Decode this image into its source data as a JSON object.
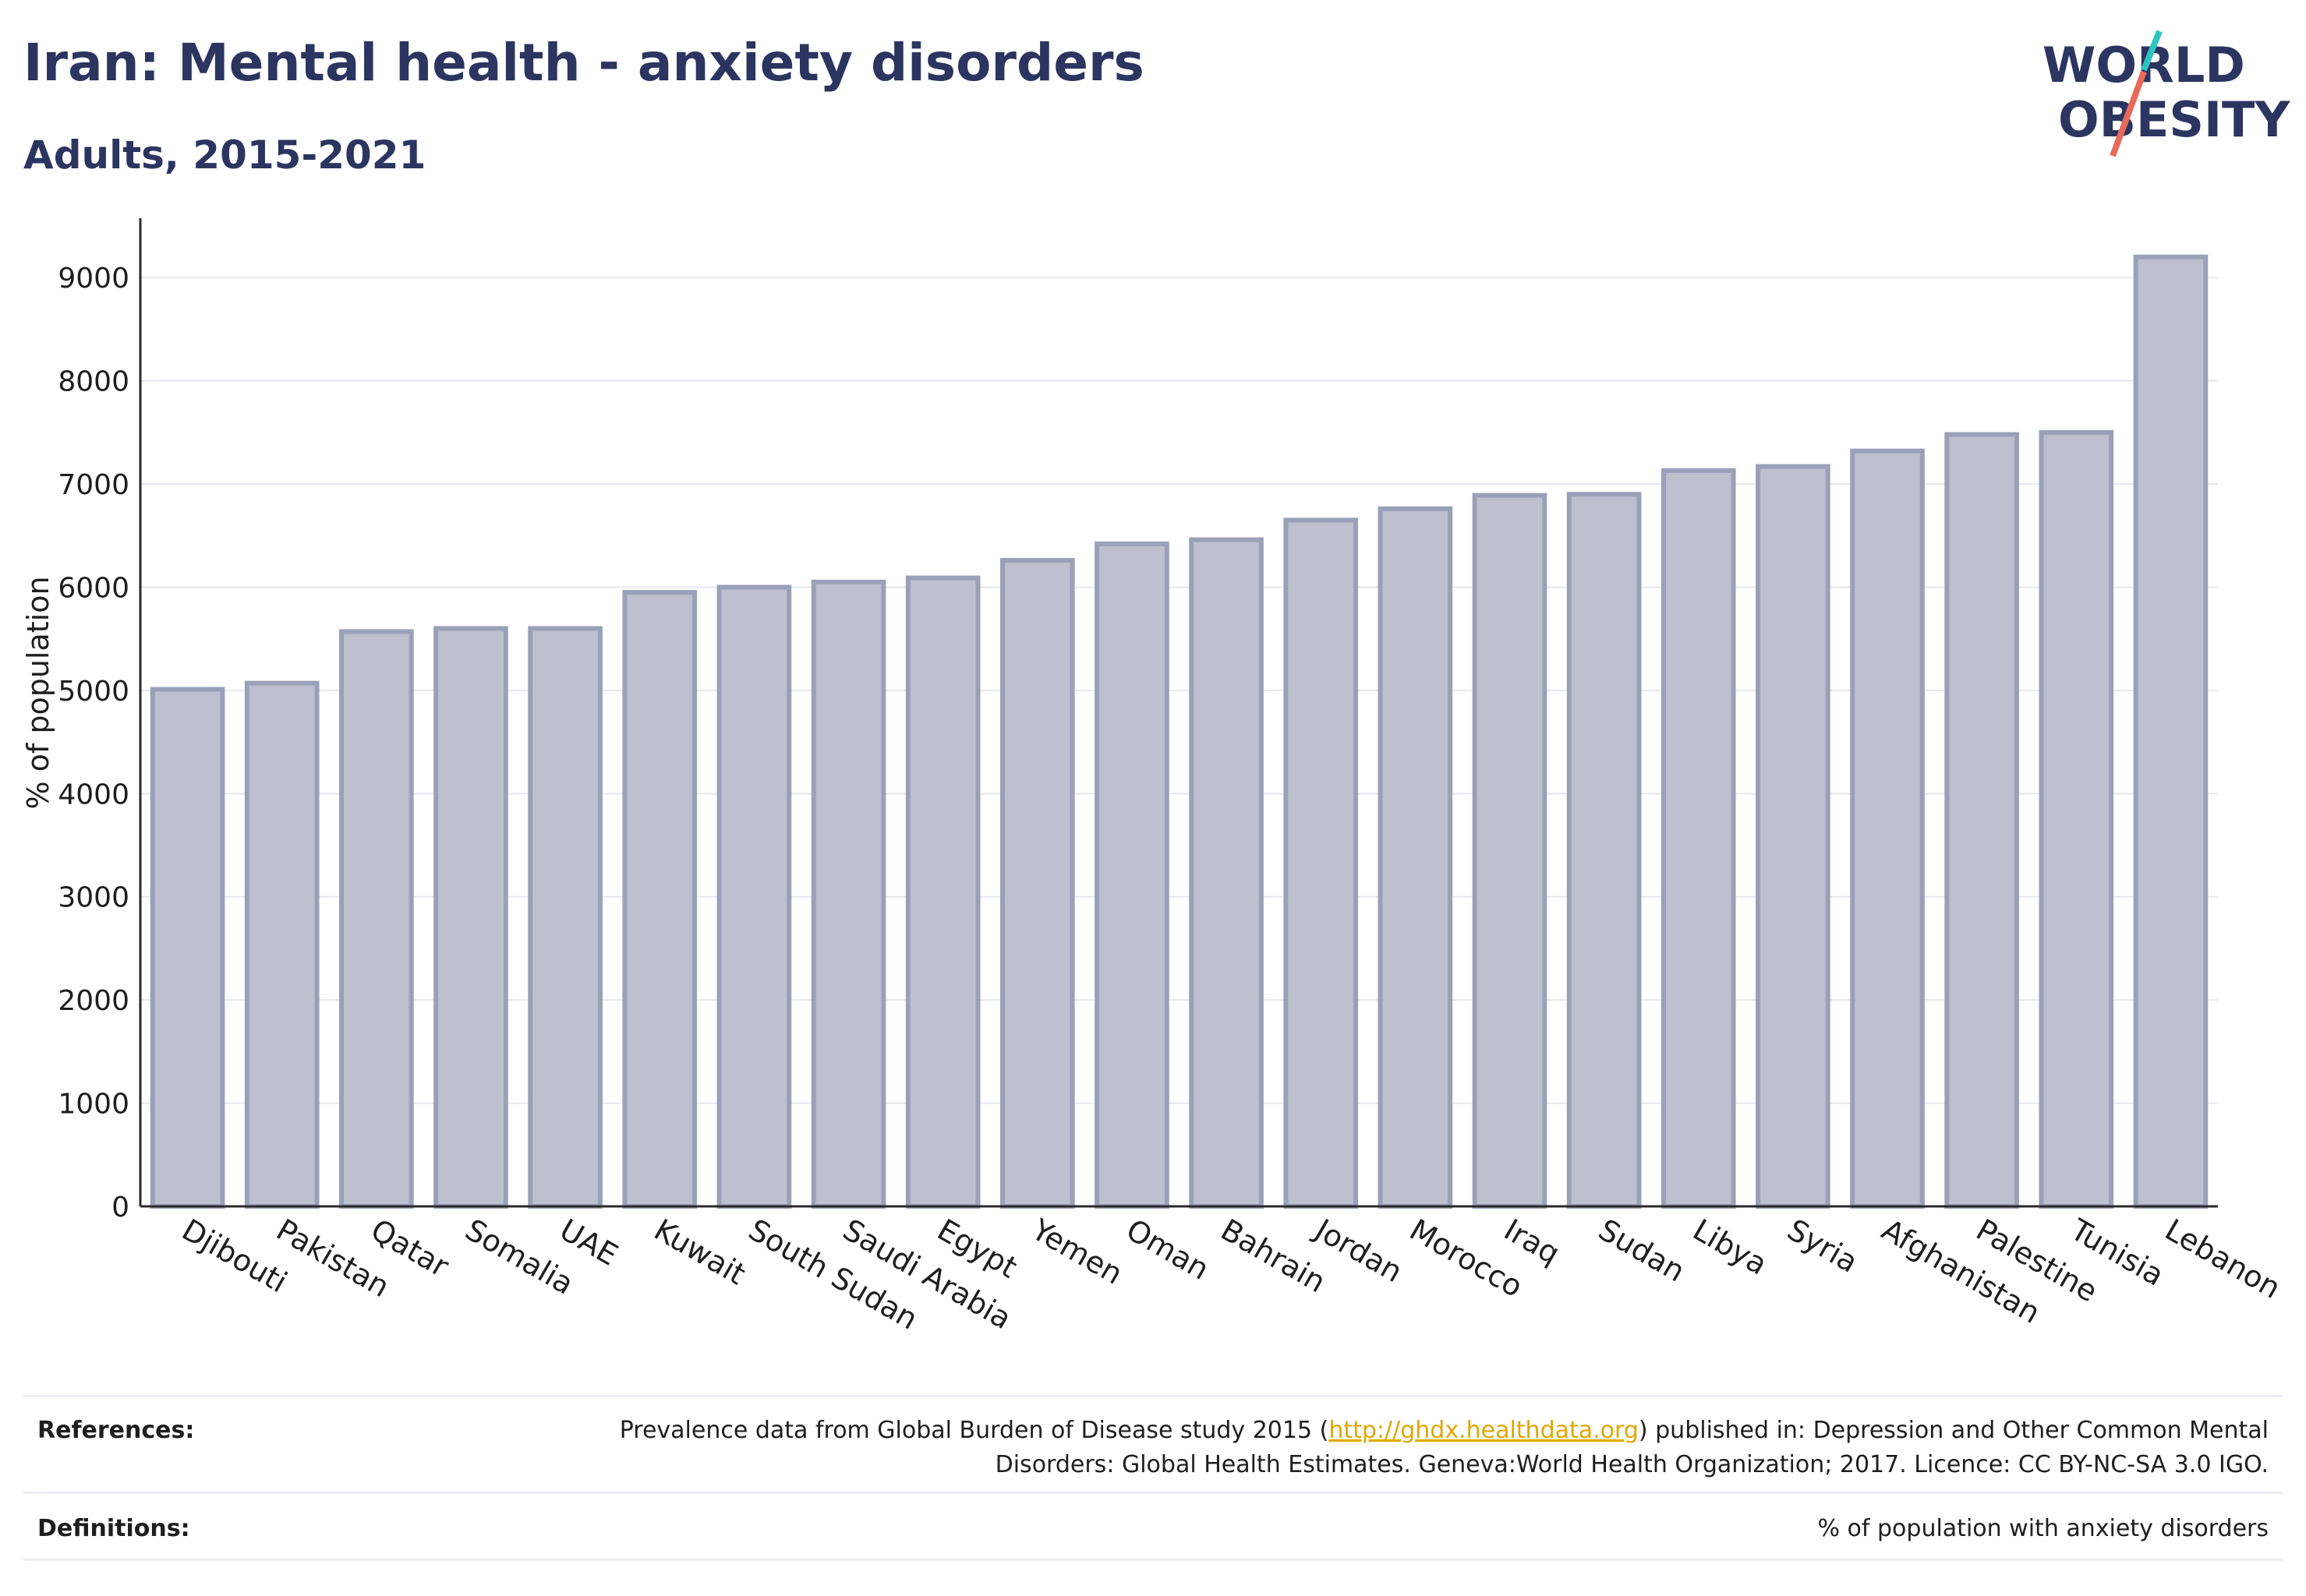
{
  "header": {
    "title": "Iran: Mental health - anxiety disorders",
    "subtitle": "Adults, 2015-2021"
  },
  "logo": {
    "line1": "WORLD",
    "line2": "OBESITY",
    "colors": {
      "text": "#2b3560",
      "slash_teal": "#2ec4c1",
      "slash_coral": "#e86a5a"
    }
  },
  "chart_data": {
    "type": "bar",
    "title": "",
    "xlabel": "",
    "ylabel": "% of population",
    "ylim": [
      0,
      9500
    ],
    "yticks": [
      0,
      1000,
      2000,
      3000,
      4000,
      5000,
      6000,
      7000,
      8000,
      9000
    ],
    "grid": true,
    "categories": [
      "Djibouti",
      "Pakistan",
      "Qatar",
      "Somalia",
      "UAE",
      "Kuwait",
      "South Sudan",
      "Saudi Arabia",
      "Egypt",
      "Yemen",
      "Oman",
      "Bahrain",
      "Jordan",
      "Morocco",
      "Iraq",
      "Sudan",
      "Libya",
      "Syria",
      "Afghanistan",
      "Palestine",
      "Tunisia",
      "Lebanon"
    ],
    "values": [
      5010,
      5070,
      5570,
      5600,
      5600,
      5950,
      6000,
      6050,
      6090,
      6260,
      6420,
      6460,
      6650,
      6760,
      6890,
      6900,
      7130,
      7170,
      7320,
      7480,
      7500,
      9200
    ],
    "colors": {
      "bar_fill": "#bcc0cf",
      "bar_stroke": "#9aa0b8",
      "grid": "#e6e8ee",
      "axis": "#2b2b2b"
    }
  },
  "footer": {
    "references_label": "References:",
    "references_text_before": "Prevalence data from Global Burden of Disease study 2015 (",
    "references_link": "http://ghdx.healthdata.org",
    "references_text_after": ") published in: Depression and Other Common Mental Disorders: Global Health Estimates. Geneva:World Health Organization; 2017. Licence: CC BY-NC-SA 3.0 IGO.",
    "definitions_label": "Definitions:",
    "definitions_text": "% of population with anxiety disorders"
  }
}
